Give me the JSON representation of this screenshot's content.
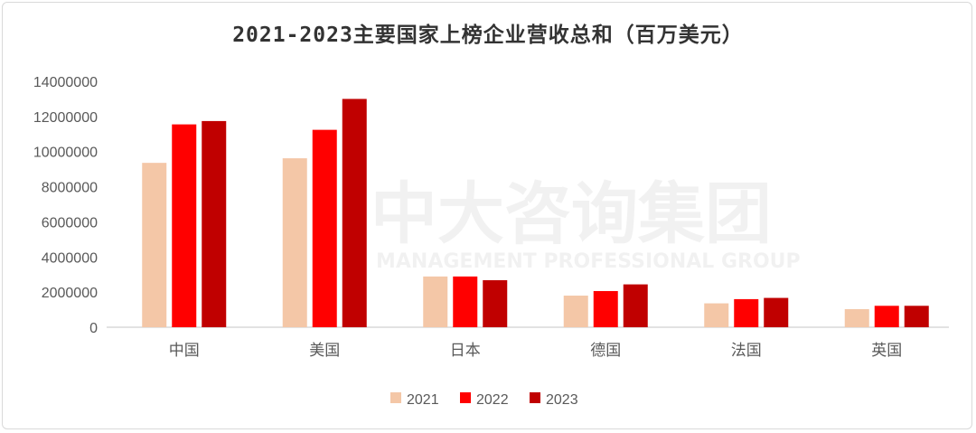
{
  "chart_data": {
    "type": "bar",
    "title": "2021-2023主要国家上榜企业营收总和（百万美元）",
    "categories": [
      "中国",
      "美国",
      "日本",
      "德国",
      "法国",
      "英国"
    ],
    "series": [
      {
        "name": "2021",
        "color": "#F4C7A7",
        "values": [
          9360000,
          9620000,
          2890000,
          1800000,
          1360000,
          1030000
        ]
      },
      {
        "name": "2022",
        "color": "#FF0000",
        "values": [
          11550000,
          11240000,
          2890000,
          2060000,
          1600000,
          1220000
        ]
      },
      {
        "name": "2023",
        "color": "#C00000",
        "values": [
          11740000,
          13000000,
          2680000,
          2440000,
          1670000,
          1220000
        ]
      }
    ],
    "ylim": [
      0,
      14000000
    ],
    "yticks": [
      "0",
      "2000000",
      "4000000",
      "6000000",
      "8000000",
      "10000000",
      "12000000",
      "14000000"
    ],
    "grid": false,
    "legend": "bottom"
  },
  "watermark": {
    "cn": "中大咨询集团",
    "en": "MANAGEMENT PROFESSIONAL GROUP"
  }
}
